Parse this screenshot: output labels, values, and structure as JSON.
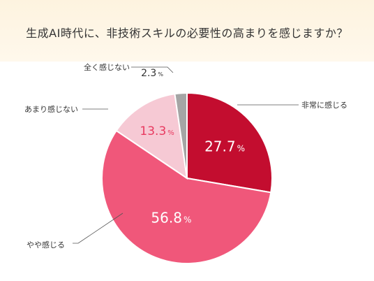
{
  "title": "生成AI時代に、非技術スキルの必要性の高まりを感じますか？",
  "chart_data": {
    "type": "pie",
    "title": "生成AI時代に、非技術スキルの必要性の高まりを感じますか？",
    "unit": "%",
    "slices": [
      {
        "label": "非常に感じる",
        "value": 27.7,
        "color": "#c30d2f",
        "value_text": "27.7"
      },
      {
        "label": "やや感じる",
        "value": 56.8,
        "color": "#f0577a",
        "value_text": "56.8"
      },
      {
        "label": "あまり感じない",
        "value": 13.3,
        "color": "#f6c9d4",
        "value_text": "13.3"
      },
      {
        "label": "全く感じない",
        "value": 2.3,
        "color": "#a5a5a5",
        "value_text": "2.3"
      }
    ],
    "start_angle_deg": 0,
    "direction": "clockwise",
    "legend": "none"
  }
}
